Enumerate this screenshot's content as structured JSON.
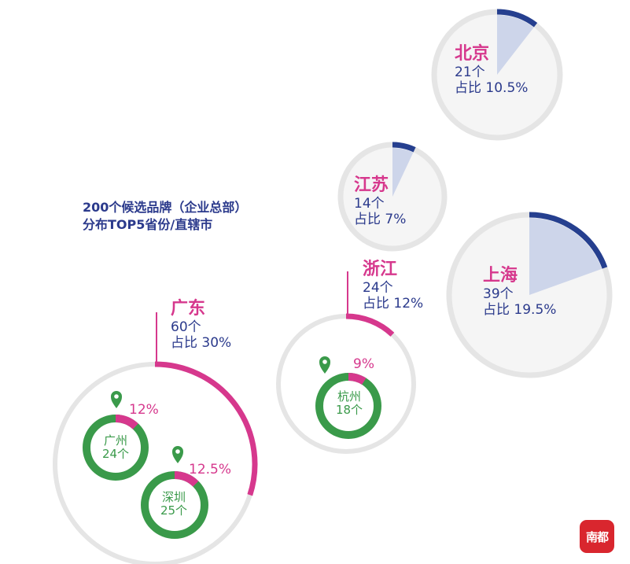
{
  "title": {
    "line1": "200个候选品牌（企业总部）",
    "line2": "分布TOP5省份/直辖市"
  },
  "logo_text": "南都",
  "colors": {
    "navy": "#253f8f",
    "pale_blue": "#cdd5ea",
    "magenta": "#d6388d",
    "green": "#3a9a4a",
    "ring_gray": "#e5e5e5",
    "circle_fill": "#f5f5f5"
  },
  "chart_data": {
    "type": "pie",
    "title": "200个候选品牌（企业总部）分布TOP5省份/直辖市",
    "total": 200,
    "regions": [
      {
        "name": "北京",
        "count_label": "21个",
        "share_label": "占比 10.5%",
        "count": 21,
        "share": 10.5
      },
      {
        "name": "江苏",
        "count_label": "14个",
        "share_label": "占比 7%",
        "count": 14,
        "share": 7
      },
      {
        "name": "上海",
        "count_label": "39个",
        "share_label": "占比 19.5%",
        "count": 39,
        "share": 19.5
      },
      {
        "name": "浙江",
        "count_label": "24个",
        "share_label": "占比 12%",
        "count": 24,
        "share": 12
      },
      {
        "name": "广东",
        "count_label": "60个",
        "share_label": "占比 30%",
        "count": 60,
        "share": 30
      }
    ],
    "cities": [
      {
        "name": "杭州",
        "count_label": "18个",
        "pct_label": "9%",
        "share": 9,
        "province": "浙江"
      },
      {
        "name": "广州",
        "count_label": "24个",
        "pct_label": "12%",
        "share": 12,
        "province": "广东"
      },
      {
        "name": "深圳",
        "count_label": "25个",
        "pct_label": "12.5%",
        "share": 12.5,
        "province": "广东"
      }
    ]
  }
}
